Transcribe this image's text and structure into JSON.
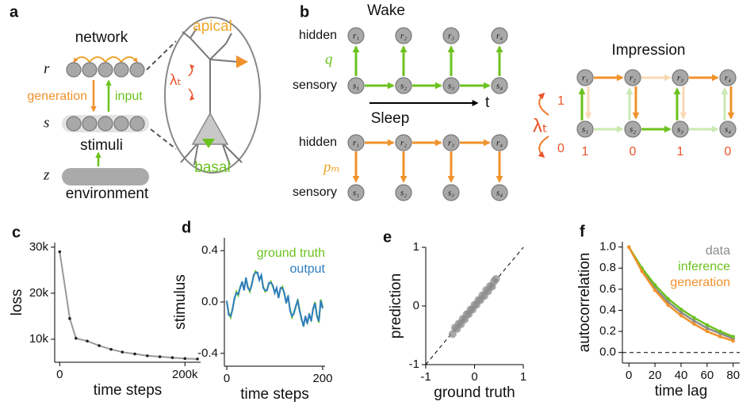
{
  "panel_a": {
    "label": "a",
    "network": "network",
    "r": "r",
    "generation": "generation",
    "input": "input",
    "s": "s",
    "stimuli": "stimuli",
    "z": "z",
    "environment": "environment",
    "apical": "apical",
    "lambda": "λₜ",
    "basal": "basal"
  },
  "panel_b": {
    "label": "b",
    "wake": {
      "title": "Wake",
      "hidden": "hidden",
      "sensory": "sensory",
      "q": "q",
      "hidden_nodes": [
        "r₁",
        "r₂",
        "r₃",
        "r₄"
      ],
      "sensory_nodes": [
        "s₁",
        "s₂",
        "s₃",
        "s₄"
      ],
      "time": "t"
    },
    "sleep": {
      "title": "Sleep",
      "hidden": "hidden",
      "sensory": "sensory",
      "p": "pₘ",
      "hidden_nodes": [
        "r₁",
        "r₂",
        "r₃",
        "r₄"
      ],
      "sensory_nodes": [
        "s₁",
        "s₂",
        "s₃",
        "s₄"
      ]
    },
    "switch": {
      "lambda": "λₜ",
      "one": "1",
      "zero": "0"
    },
    "impression": {
      "title": "Impression",
      "hidden_nodes": [
        "r₁",
        "r₂",
        "r₃",
        "r₄"
      ],
      "sensory_nodes": [
        "s₁",
        "s₂",
        "s₃",
        "s₄"
      ],
      "phases": [
        "1",
        "0",
        "1",
        "0"
      ]
    }
  },
  "chart_data": [
    {
      "type": "line",
      "panel_label": "c",
      "xlabel": "time steps",
      "ylabel": "loss",
      "x": [
        0,
        16000,
        26000,
        44000,
        63000,
        82000,
        100000,
        120000,
        140000,
        160000,
        180000,
        200000,
        220000
      ],
      "series": [
        {
          "color": "#999999",
          "marker_color": "#222222",
          "values": [
            29000,
            14500,
            10200,
            9600,
            8600,
            7800,
            7200,
            6800,
            6400,
            6200,
            6000,
            5800,
            5700
          ]
        }
      ],
      "xlim": [
        -8000,
        225000
      ],
      "xticks": [
        0,
        {
          "value": 200000,
          "label": "200k"
        }
      ],
      "ylim": [
        5000,
        31000
      ],
      "yticks": [
        {
          "value": 10000,
          "label": "10k"
        },
        {
          "value": 20000,
          "label": "20k"
        },
        {
          "value": 30000,
          "label": "30k"
        }
      ]
    },
    {
      "type": "line",
      "panel_label": "d",
      "xlabel": "time steps",
      "ylabel": "stimulus",
      "x": [
        0,
        4,
        8,
        12,
        16,
        20,
        24,
        28,
        32,
        36,
        40,
        44,
        48,
        52,
        56,
        60,
        64,
        68,
        72,
        76,
        80,
        84,
        88,
        92,
        96,
        100,
        104,
        108,
        112,
        116,
        120,
        124,
        128,
        132,
        136,
        140,
        144,
        148,
        152,
        156,
        160,
        164,
        168,
        172,
        176,
        180,
        184,
        188,
        192,
        196,
        200
      ],
      "series": [
        {
          "name": "ground truth",
          "color": "#6cc21e",
          "values": [
            0.0,
            -0.08,
            -0.12,
            -0.05,
            0.02,
            0.08,
            0.05,
            0.12,
            0.15,
            0.1,
            0.18,
            0.12,
            0.08,
            0.14,
            0.2,
            0.24,
            0.22,
            0.18,
            0.2,
            0.12,
            0.08,
            0.1,
            0.14,
            0.16,
            0.12,
            0.08,
            0.1,
            0.04,
            0.1,
            0.12,
            0.06,
            0.0,
            0.04,
            -0.06,
            -0.12,
            -0.08,
            -0.04,
            0.02,
            -0.06,
            -0.14,
            -0.18,
            -0.12,
            -0.16,
            -0.1,
            -0.14,
            -0.06,
            0.0,
            -0.1,
            -0.16,
            0.02,
            -0.04
          ]
        },
        {
          "name": "output",
          "color": "#2f7dbf",
          "values": [
            0.01,
            -0.1,
            -0.11,
            -0.06,
            0.03,
            0.07,
            0.06,
            0.11,
            0.16,
            0.09,
            0.19,
            0.11,
            0.09,
            0.13,
            0.21,
            0.23,
            0.23,
            0.17,
            0.21,
            0.11,
            0.09,
            0.09,
            0.15,
            0.15,
            0.13,
            0.07,
            0.11,
            0.03,
            0.11,
            0.11,
            0.07,
            -0.01,
            0.05,
            -0.07,
            -0.11,
            -0.09,
            -0.03,
            0.01,
            -0.07,
            -0.13,
            -0.19,
            -0.11,
            -0.17,
            -0.09,
            -0.15,
            -0.05,
            -0.01,
            -0.11,
            -0.15,
            0.01,
            -0.05
          ]
        }
      ],
      "xlim": [
        -5,
        205
      ],
      "xticks": [
        0,
        200
      ],
      "ylim": [
        -0.5,
        0.5
      ],
      "yticks": [
        0.4,
        {
          "value": 0,
          "label": "0.0"
        },
        -0.4
      ]
    },
    {
      "type": "scatter",
      "panel_label": "e",
      "xlabel": "ground truth",
      "ylabel": "prediction",
      "color": "#8c8c8c",
      "diagonal": true,
      "x": [
        -0.45,
        -0.4,
        -0.36,
        -0.32,
        -0.28,
        -0.24,
        -0.2,
        -0.16,
        -0.12,
        -0.08,
        -0.04,
        0.0,
        0.04,
        0.08,
        0.12,
        0.16,
        0.2,
        0.24,
        0.28,
        0.32,
        0.36,
        0.4,
        0.44
      ],
      "values": [
        -0.48,
        -0.37,
        -0.39,
        -0.3,
        -0.31,
        -0.22,
        -0.23,
        -0.14,
        -0.14,
        -0.06,
        -0.06,
        0.02,
        0.02,
        0.1,
        0.1,
        0.18,
        0.17,
        0.27,
        0.25,
        0.34,
        0.33,
        0.42,
        0.46
      ],
      "xlim": [
        -1,
        1
      ],
      "xticks": [
        -1,
        0,
        1
      ],
      "ylim": [
        -1,
        1
      ],
      "yticks": [
        -1,
        0,
        1
      ]
    },
    {
      "type": "line",
      "panel_label": "f",
      "xlabel": "time lag",
      "ylabel": "autocorrelation",
      "hlines": [
        0
      ],
      "x": [
        0,
        10,
        20,
        30,
        40,
        50,
        60,
        70,
        80
      ],
      "series": [
        {
          "name": "data",
          "color": "#8c8c8c",
          "values": [
            1.0,
            0.78,
            0.61,
            0.48,
            0.38,
            0.3,
            0.23,
            0.18,
            0.13
          ]
        },
        {
          "name": "inference",
          "color": "#6cc21e",
          "values": [
            1.0,
            0.8,
            0.64,
            0.51,
            0.41,
            0.33,
            0.26,
            0.2,
            0.15
          ]
        },
        {
          "name": "generation",
          "color": "#f0922b",
          "values": [
            1.0,
            0.77,
            0.59,
            0.45,
            0.35,
            0.27,
            0.2,
            0.15,
            0.11
          ]
        }
      ],
      "xlim": [
        -5,
        85
      ],
      "xticks": [
        0,
        20,
        40,
        60,
        80
      ],
      "ylim": [
        -0.1,
        1.05
      ],
      "yticks": [
        {
          "value": 0,
          "label": "0.0"
        },
        0.2,
        0.4,
        0.6,
        0.8,
        {
          "value": 1,
          "label": "1.0"
        }
      ]
    }
  ]
}
